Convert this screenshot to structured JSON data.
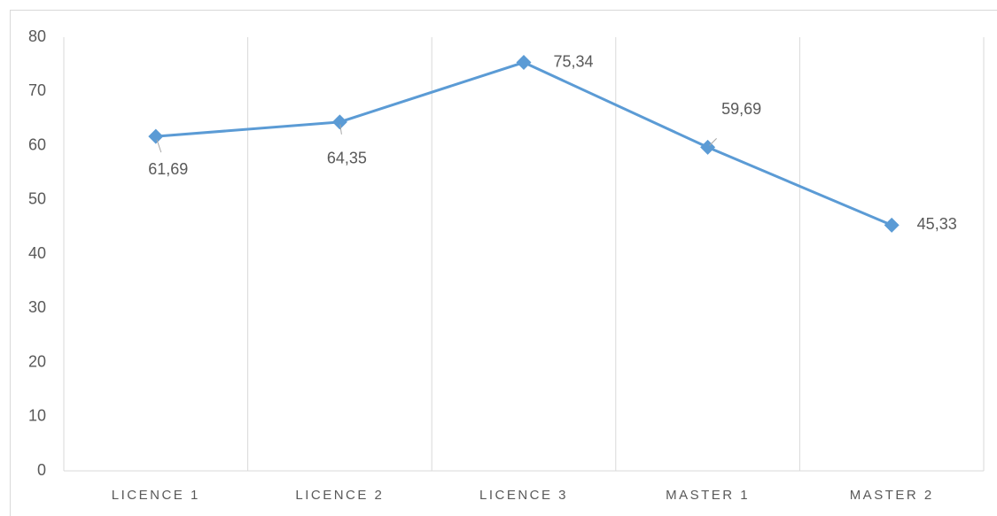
{
  "chart_data": {
    "type": "line",
    "categories": [
      "LICENCE 1",
      "LICENCE 2",
      "LICENCE 3",
      "MASTER 1",
      "MASTER 2"
    ],
    "series": [
      {
        "color": "#5b9bd5",
        "values": [
          61.69,
          64.35,
          75.34,
          59.69,
          45.33
        ],
        "value_labels": [
          "61,69",
          "64,35",
          "75,34",
          "59,69",
          "45,33"
        ]
      }
    ],
    "ylim": [
      0,
      80
    ],
    "yticks": [
      0,
      10,
      20,
      30,
      40,
      50,
      60,
      70,
      80
    ],
    "grid": false
  }
}
